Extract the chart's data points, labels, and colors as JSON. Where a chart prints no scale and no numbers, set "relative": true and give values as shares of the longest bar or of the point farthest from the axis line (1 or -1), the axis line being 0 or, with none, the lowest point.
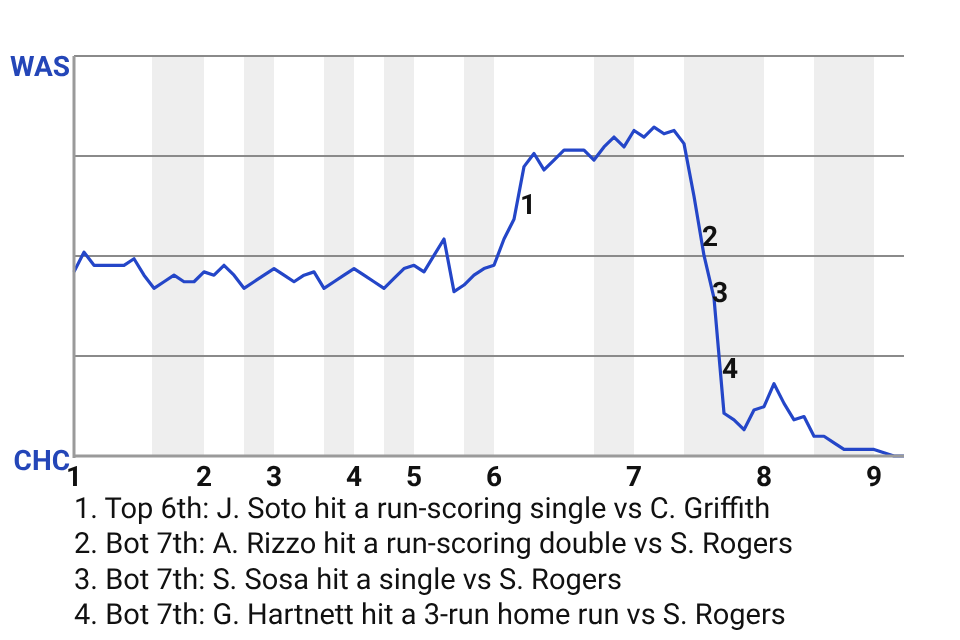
{
  "chart_data": {
    "type": "line",
    "relative": true,
    "categories": [
      "1",
      null,
      null,
      null,
      null,
      null,
      null,
      null,
      null,
      null,
      null,
      null,
      null,
      "2",
      null,
      null,
      null,
      null,
      null,
      null,
      "3",
      null,
      null,
      null,
      null,
      null,
      null,
      null,
      "4",
      null,
      null,
      null,
      null,
      null,
      "5",
      null,
      null,
      null,
      null,
      null,
      null,
      null,
      "6",
      null,
      null,
      null,
      null,
      null,
      null,
      null,
      null,
      null,
      null,
      null,
      null,
      null,
      "7",
      null,
      null,
      null,
      null,
      null,
      null,
      null,
      null,
      null,
      null,
      null,
      null,
      "8",
      null,
      null,
      null,
      null,
      null,
      null,
      null,
      null,
      null,
      null,
      "9",
      null,
      null,
      null
    ],
    "grid": "y",
    "marker": "none",
    "line_style": "solid",
    "series": [
      {
        "color": "#2446c8",
        "values": [
          0.56,
          0.62,
          0.58,
          0.58,
          0.58,
          0.58,
          0.6,
          0.55,
          0.51,
          0.53,
          0.55,
          0.53,
          0.53,
          0.56,
          0.55,
          0.58,
          0.55,
          0.51,
          0.53,
          0.55,
          0.57,
          0.55,
          0.53,
          0.55,
          0.56,
          0.51,
          0.53,
          0.55,
          0.57,
          0.55,
          0.53,
          0.51,
          0.54,
          0.57,
          0.58,
          0.56,
          0.61,
          0.66,
          0.5,
          0.52,
          0.55,
          0.57,
          0.58,
          0.66,
          0.72,
          0.88,
          0.92,
          0.87,
          0.9,
          0.93,
          0.93,
          0.93,
          0.9,
          0.94,
          0.97,
          0.94,
          0.99,
          0.97,
          1,
          0.98,
          0.99,
          0.95,
          0.79,
          0.61,
          0.48,
          0.13,
          0.11,
          0.08,
          0.14,
          0.15,
          0.22,
          0.16,
          0.11,
          0.12,
          0.06,
          0.06,
          0.04,
          0.02,
          0.02,
          0.02,
          0.02,
          0.01,
          0,
          0
        ]
      }
    ],
    "annotations": [
      "WAS",
      "CHC",
      "1. Top 6th: J. Soto hit a run-scoring single vs C. Griffith",
      "2. Bot 7th: A. Rizzo hit a run-scoring double vs S. Rogers",
      "3. Bot 7th: S. Sosa hit a single vs S. Rogers",
      "4. Bot 7th: G. Hartnett hit a 3-run home run vs S. Rogers",
      "1",
      "2",
      "3",
      "4"
    ]
  }
}
